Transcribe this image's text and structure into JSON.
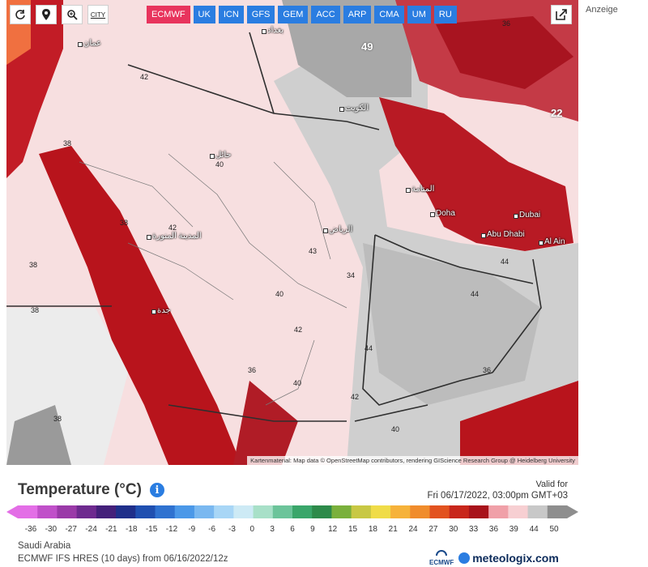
{
  "toolbar": {
    "buttons": [
      {
        "name": "refresh-icon",
        "label": "⟳"
      },
      {
        "name": "location-pin-icon",
        "label": ""
      },
      {
        "name": "zoom-icon",
        "label": ""
      },
      {
        "name": "city-toggle-icon",
        "label": "CITY"
      }
    ]
  },
  "models": [
    {
      "label": "ECMWF",
      "active": true
    },
    {
      "label": "UK",
      "active": false
    },
    {
      "label": "ICN",
      "active": false
    },
    {
      "label": "GFS",
      "active": false
    },
    {
      "label": "GEM",
      "active": false
    },
    {
      "label": "ACC",
      "active": false
    },
    {
      "label": "ARP",
      "active": false
    },
    {
      "label": "CMA",
      "active": false
    },
    {
      "label": "UM",
      "active": false
    },
    {
      "label": "RU",
      "active": false
    }
  ],
  "ad_label": "Anzeige",
  "map": {
    "attribution": "Kartenmaterial: Map data © OpenStreetMap contributors, rendering GIScience Research Group @ Heidelberg University",
    "cities": [
      "Doha",
      "Dubai",
      "Abu Dhabi",
      "Al Ain"
    ],
    "arabic_labels": [
      "عمان",
      "الرياض",
      "المدينة المنورة",
      "جدة",
      "الكويت",
      "بغداد",
      "حائل",
      "المنامة"
    ],
    "values": [
      "49",
      "22",
      "42",
      "38",
      "40",
      "44",
      "36",
      "34",
      "43",
      "42",
      "38",
      "40",
      "44",
      "42",
      "38",
      "36",
      "40",
      "38",
      "44",
      "36",
      "42",
      "40",
      "38"
    ],
    "colors": {
      "hot": "#b8141c",
      "warm": "#e8a5a8",
      "mild": "#f7d9d9",
      "gray": "#c8c8c8",
      "darkgray": "#a0a0a0",
      "border": "#333333"
    }
  },
  "title": "Temperature (°C)",
  "valid": {
    "label": "Valid for",
    "time": "Fri 06/17/2022, 03:00pm GMT+03"
  },
  "scale": {
    "ticks": [
      "-36",
      "-30",
      "-27",
      "-24",
      "-21",
      "-18",
      "-15",
      "-12",
      "-9",
      "-6",
      "-3",
      "0",
      "3",
      "6",
      "9",
      "12",
      "15",
      "18",
      "21",
      "24",
      "27",
      "30",
      "33",
      "36",
      "39",
      "44",
      "50"
    ],
    "colors": [
      "#e36ee6",
      "#c050c9",
      "#9a3aa8",
      "#6e2a8f",
      "#44207a",
      "#1f2f8a",
      "#1f4fb0",
      "#2f72d0",
      "#4b98e8",
      "#7ab8f0",
      "#a8d6f6",
      "#cdeaf5",
      "#a8e0c8",
      "#6cc49a",
      "#3aa66a",
      "#2d8a4a",
      "#7ab03c",
      "#c8c844",
      "#f0dc48",
      "#f6b23a",
      "#f08c2c",
      "#e2521f",
      "#c8261b",
      "#a8121a",
      "#f0a0a8",
      "#f7cfd2",
      "#c8c8c8",
      "#8e8e8e"
    ]
  },
  "footer": {
    "region": "Saudi Arabia",
    "model_info": "ECMWF IFS HRES (10 days) from 06/16/2022/12z",
    "logo_ecmwf": "ECMWF",
    "logo_meteologix": "meteologix.com"
  }
}
